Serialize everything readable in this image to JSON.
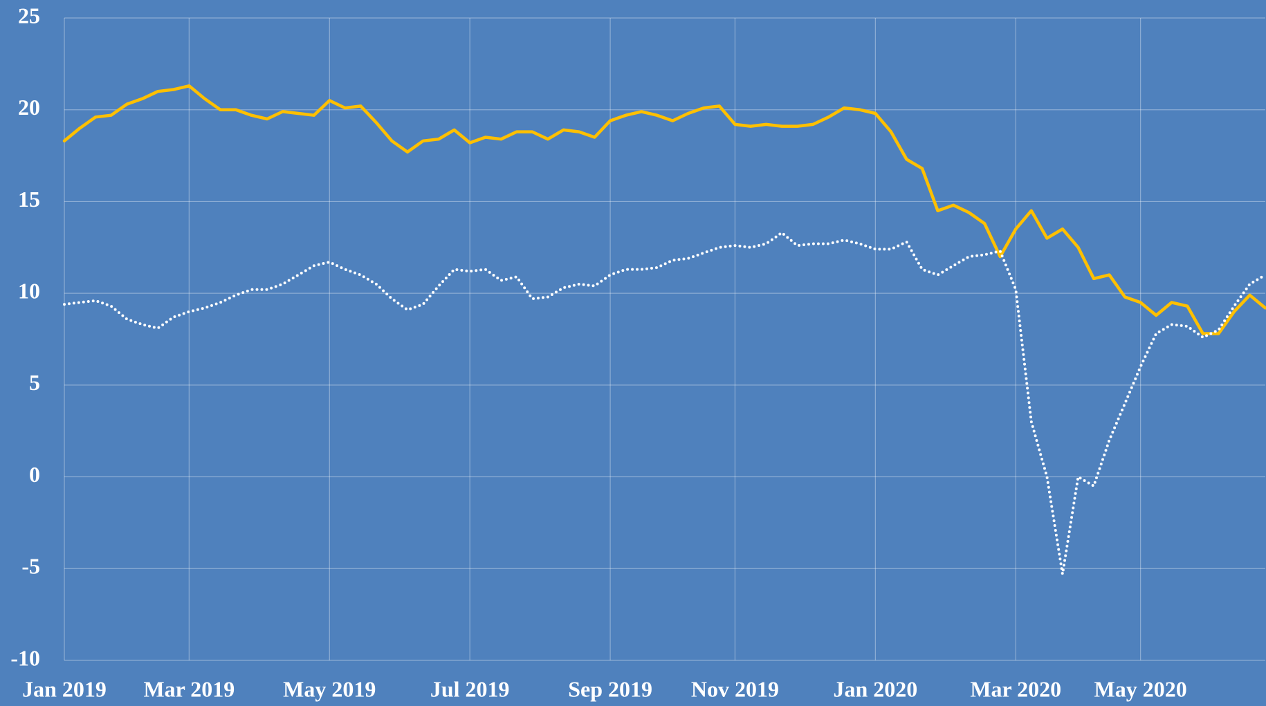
{
  "chart_data": {
    "type": "line",
    "categories": [
      "Jan 2019",
      null,
      null,
      null,
      null,
      null,
      null,
      null,
      "Mar 2019",
      null,
      null,
      null,
      null,
      null,
      null,
      null,
      null,
      "May 2019",
      null,
      null,
      null,
      null,
      null,
      null,
      null,
      null,
      "Jul 2019",
      null,
      null,
      null,
      null,
      null,
      null,
      null,
      null,
      "Sep 2019",
      null,
      null,
      null,
      null,
      null,
      null,
      null,
      "Nov 2019",
      null,
      null,
      null,
      null,
      null,
      null,
      null,
      null,
      "Jan 2020",
      null,
      null,
      null,
      null,
      null,
      null,
      null,
      null,
      "Mar 2020",
      null,
      null,
      null,
      null,
      null,
      null,
      null,
      "May 2020",
      null,
      null,
      null,
      null,
      null,
      null,
      null,
      null
    ],
    "series": [
      {
        "color": "#ffc000",
        "style": "solid",
        "values": [
          18.3,
          19.0,
          19.6,
          19.7,
          20.3,
          20.6,
          21.0,
          21.1,
          21.3,
          20.6,
          20.0,
          20.0,
          19.7,
          19.5,
          19.9,
          19.8,
          19.7,
          20.5,
          20.1,
          20.2,
          19.3,
          18.3,
          17.7,
          18.3,
          18.4,
          18.9,
          18.2,
          18.5,
          18.4,
          18.8,
          18.8,
          18.4,
          18.9,
          18.8,
          18.5,
          19.4,
          19.7,
          19.9,
          19.7,
          19.4,
          19.8,
          20.1,
          20.2,
          19.2,
          19.1,
          19.2,
          19.1,
          19.1,
          19.2,
          19.6,
          20.1,
          20.0,
          19.8,
          18.8,
          17.3,
          16.8,
          14.5,
          14.8,
          14.4,
          13.8,
          12.0,
          13.5,
          14.5,
          13.0,
          13.5,
          12.5,
          10.8,
          11.0,
          9.8,
          9.5,
          8.8,
          9.5,
          9.3,
          7.8,
          7.8,
          9.0,
          9.9,
          9.2
        ]
      },
      {
        "color": "#ffffff",
        "style": "dotted",
        "values": [
          9.4,
          9.5,
          9.6,
          9.3,
          8.6,
          8.3,
          8.1,
          8.7,
          9.0,
          9.2,
          9.5,
          9.9,
          10.2,
          10.2,
          10.5,
          11.0,
          11.5,
          11.7,
          11.3,
          11.0,
          10.5,
          9.7,
          9.1,
          9.4,
          10.4,
          11.3,
          11.2,
          11.3,
          10.7,
          10.9,
          9.7,
          9.8,
          10.3,
          10.5,
          10.4,
          11.0,
          11.3,
          11.3,
          11.4,
          11.8,
          11.9,
          12.2,
          12.5,
          12.6,
          12.5,
          12.7,
          13.3,
          12.6,
          12.7,
          12.7,
          12.9,
          12.7,
          12.4,
          12.4,
          12.8,
          11.3,
          11.0,
          11.5,
          12.0,
          12.1,
          12.3,
          10.2,
          3.0,
          0.0,
          -5.3,
          0.0,
          -0.5,
          2.0,
          4.0,
          6.0,
          7.8,
          8.3,
          8.2,
          7.6,
          8.0,
          9.3,
          10.5,
          11.0
        ]
      }
    ],
    "ylim": [
      -10,
      25
    ],
    "yticks": [
      -10,
      -5,
      0,
      5,
      10,
      15,
      20,
      25
    ],
    "grid": true,
    "background": "#4f81bd"
  }
}
